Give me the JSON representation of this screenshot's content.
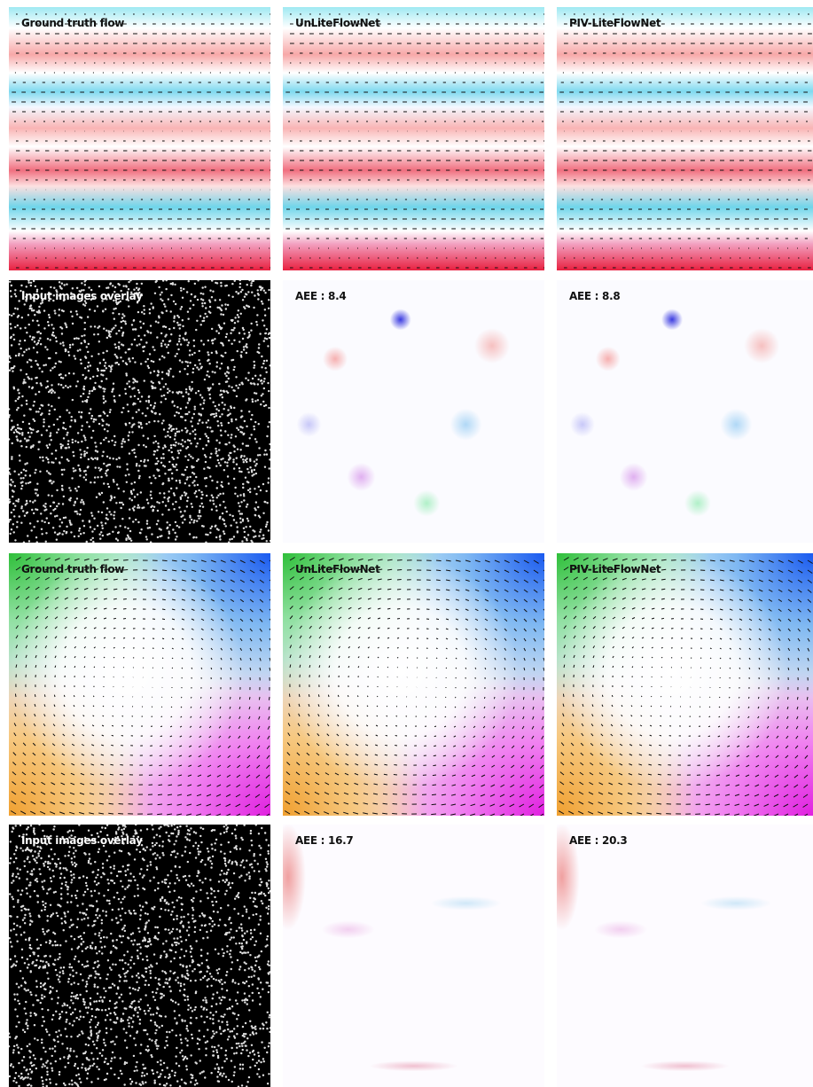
{
  "rows": [
    {
      "panels": [
        {
          "label": "Ground truth flow"
        },
        {
          "label": "UnLiteFlowNet"
        },
        {
          "label": "PIV-LiteFlowNet"
        }
      ]
    },
    {
      "panels": [
        {
          "label": "Input images overlay"
        },
        {
          "label": "AEE : 8.4"
        },
        {
          "label": "AEE : 8.8"
        }
      ]
    },
    {
      "panels": [
        {
          "label": "Ground truth flow"
        },
        {
          "label": "UnLiteFlowNet"
        },
        {
          "label": "PIV-LiteFlowNet"
        }
      ]
    },
    {
      "panels": [
        {
          "label": "Input images overlay"
        },
        {
          "label": "AEE : 16.7"
        },
        {
          "label": "AEE : 20.3"
        }
      ]
    }
  ]
}
